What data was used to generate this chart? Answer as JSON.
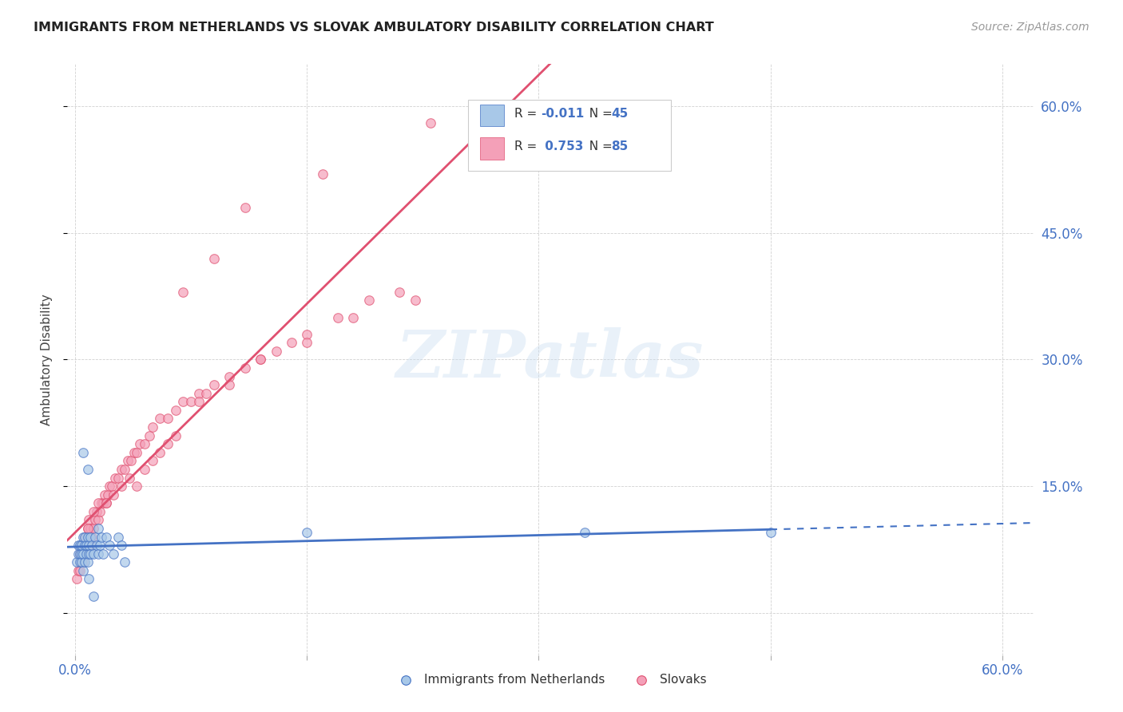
{
  "title": "IMMIGRANTS FROM NETHERLANDS VS SLOVAK AMBULATORY DISABILITY CORRELATION CHART",
  "source": "Source: ZipAtlas.com",
  "ylabel": "Ambulatory Disability",
  "xmin": -0.005,
  "xmax": 0.62,
  "ymin": -0.05,
  "ymax": 0.65,
  "color_netherlands": "#a8c8e8",
  "color_netherlands_line": "#4472c4",
  "color_slovaks": "#f4a0b8",
  "color_slovaks_line": "#e05070",
  "marker_size": 70,
  "watermark": "ZIPatlas",
  "nl_R": "-0.011",
  "nl_N": "45",
  "sk_R": "0.753",
  "sk_N": "85",
  "netherlands_x": [
    0.001,
    0.002,
    0.002,
    0.003,
    0.003,
    0.003,
    0.004,
    0.004,
    0.004,
    0.005,
    0.005,
    0.005,
    0.006,
    0.006,
    0.006,
    0.007,
    0.007,
    0.008,
    0.008,
    0.009,
    0.009,
    0.01,
    0.01,
    0.011,
    0.012,
    0.013,
    0.014,
    0.015,
    0.015,
    0.016,
    0.017,
    0.018,
    0.02,
    0.022,
    0.025,
    0.028,
    0.03,
    0.032,
    0.15,
    0.33,
    0.45,
    0.005,
    0.008,
    0.012,
    0.009
  ],
  "netherlands_y": [
    0.06,
    0.07,
    0.08,
    0.06,
    0.07,
    0.08,
    0.06,
    0.07,
    0.08,
    0.05,
    0.07,
    0.09,
    0.06,
    0.08,
    0.09,
    0.07,
    0.08,
    0.06,
    0.09,
    0.07,
    0.08,
    0.07,
    0.09,
    0.08,
    0.07,
    0.09,
    0.08,
    0.07,
    0.1,
    0.08,
    0.09,
    0.07,
    0.09,
    0.08,
    0.07,
    0.09,
    0.08,
    0.06,
    0.095,
    0.095,
    0.095,
    0.19,
    0.17,
    0.02,
    0.04
  ],
  "slovaks_x": [
    0.001,
    0.002,
    0.003,
    0.003,
    0.004,
    0.004,
    0.005,
    0.005,
    0.006,
    0.006,
    0.007,
    0.007,
    0.008,
    0.008,
    0.009,
    0.009,
    0.01,
    0.01,
    0.011,
    0.012,
    0.013,
    0.014,
    0.015,
    0.016,
    0.017,
    0.018,
    0.019,
    0.02,
    0.021,
    0.022,
    0.024,
    0.026,
    0.028,
    0.03,
    0.032,
    0.034,
    0.036,
    0.038,
    0.04,
    0.042,
    0.045,
    0.048,
    0.05,
    0.055,
    0.06,
    0.065,
    0.07,
    0.075,
    0.08,
    0.085,
    0.09,
    0.1,
    0.11,
    0.12,
    0.13,
    0.14,
    0.15,
    0.17,
    0.19,
    0.21,
    0.005,
    0.008,
    0.012,
    0.015,
    0.02,
    0.025,
    0.03,
    0.035,
    0.04,
    0.045,
    0.05,
    0.055,
    0.06,
    0.065,
    0.08,
    0.1,
    0.12,
    0.15,
    0.18,
    0.22,
    0.07,
    0.09,
    0.11,
    0.16,
    0.23
  ],
  "slovaks_y": [
    0.04,
    0.05,
    0.05,
    0.07,
    0.06,
    0.08,
    0.06,
    0.08,
    0.07,
    0.09,
    0.07,
    0.09,
    0.08,
    0.1,
    0.09,
    0.11,
    0.08,
    0.1,
    0.09,
    0.1,
    0.11,
    0.12,
    0.11,
    0.12,
    0.13,
    0.13,
    0.14,
    0.13,
    0.14,
    0.15,
    0.15,
    0.16,
    0.16,
    0.17,
    0.17,
    0.18,
    0.18,
    0.19,
    0.19,
    0.2,
    0.2,
    0.21,
    0.22,
    0.23,
    0.23,
    0.24,
    0.25,
    0.25,
    0.26,
    0.26,
    0.27,
    0.28,
    0.29,
    0.3,
    0.31,
    0.32,
    0.33,
    0.35,
    0.37,
    0.38,
    0.08,
    0.1,
    0.12,
    0.13,
    0.13,
    0.14,
    0.15,
    0.16,
    0.15,
    0.17,
    0.18,
    0.19,
    0.2,
    0.21,
    0.25,
    0.27,
    0.3,
    0.32,
    0.35,
    0.37,
    0.38,
    0.42,
    0.48,
    0.52,
    0.58
  ]
}
